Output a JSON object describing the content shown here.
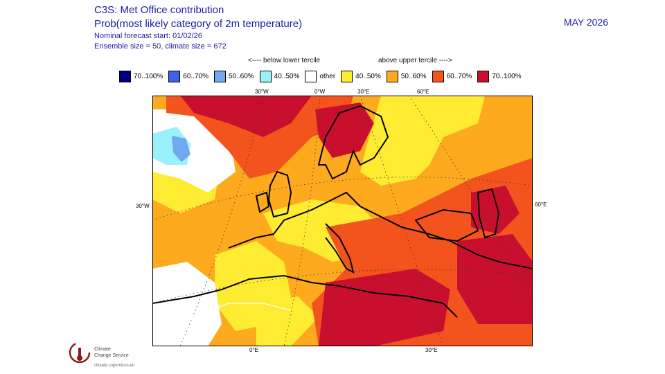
{
  "header": {
    "title1": "C3S: Met Office contribution",
    "title2": "Prob(most likely category of 2m temperature)",
    "line3": "Nominal forecast start: 01/02/26",
    "line4": "Ensemble size = 50, climate size = 672",
    "date": "MAY 2026"
  },
  "tercile": {
    "below": "<---- below lower tercile",
    "above": "above upper tercile ---->"
  },
  "legend": [
    {
      "label": "70..100%",
      "color": "#00007f"
    },
    {
      "label": "60..70%",
      "color": "#3b63e4"
    },
    {
      "label": "50..60%",
      "color": "#71a8ef"
    },
    {
      "label": "40..50%",
      "color": "#99f1fb"
    },
    {
      "label": "other",
      "color": "#ffffff"
    },
    {
      "label": "40..50%",
      "color": "#fdec32"
    },
    {
      "label": "50..60%",
      "color": "#fdaa1f"
    },
    {
      "label": "60..70%",
      "color": "#f3541e"
    },
    {
      "label": "70..100%",
      "color": "#c8102e"
    }
  ],
  "axis_labels": {
    "top": [
      "30°W",
      "0°W",
      "30°E",
      "60°E"
    ],
    "left": "30°W",
    "right": "60°E",
    "bottom": [
      "0°E",
      "30°E"
    ]
  },
  "logo": {
    "line1": "Climate",
    "line2": "Change Service",
    "url": "climate.copernicus.eu"
  }
}
